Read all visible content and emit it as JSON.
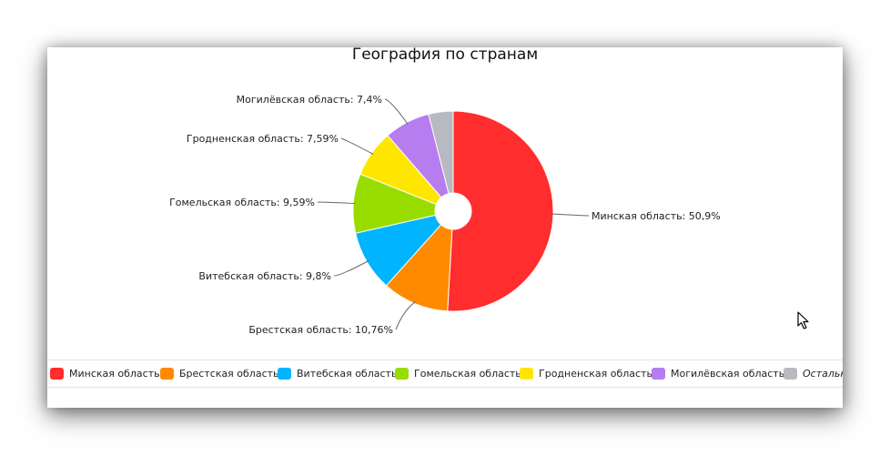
{
  "chart_data": {
    "type": "pie",
    "title": "География по странам",
    "donut": true,
    "slices": [
      {
        "name": "Минская область",
        "value": 50.9,
        "label": "Минская область: 50,9%",
        "color": "#ff2d2d"
      },
      {
        "name": "Брестская область",
        "value": 10.76,
        "label": "Брестская область: 10,76%",
        "color": "#ff8a00"
      },
      {
        "name": "Витебская область",
        "value": 9.8,
        "label": "Витебская область: 9,8%",
        "color": "#00b4ff"
      },
      {
        "name": "Гомельская область",
        "value": 9.59,
        "label": "Гомельская область: 9,59%",
        "color": "#99dd00"
      },
      {
        "name": "Гродненская область",
        "value": 7.59,
        "label": "Гродненская область: 7,59%",
        "color": "#ffe600"
      },
      {
        "name": "Могилёвская область",
        "value": 7.4,
        "label": "Могилёвская область: 7,4%",
        "color": "#b67cf0"
      },
      {
        "name": "Остальные",
        "value": 3.96,
        "label": "",
        "color": "#b9b9c1"
      }
    ],
    "legend_position": "bottom"
  },
  "legend": {
    "items": [
      {
        "label": "Минская область",
        "color": "#ff2d2d"
      },
      {
        "label": "Брестская область",
        "color": "#ff8a00"
      },
      {
        "label": "Витебская область",
        "color": "#00b4ff"
      },
      {
        "label": "Гомельская область",
        "color": "#99dd00"
      },
      {
        "label": "Гродненская область",
        "color": "#ffe600"
      },
      {
        "label": "Могилёвская область",
        "color": "#b67cf0"
      },
      {
        "label": "Остальные",
        "color": "#b9b9c1"
      }
    ]
  },
  "cursor": {
    "icon": "mouse-pointer-icon"
  }
}
